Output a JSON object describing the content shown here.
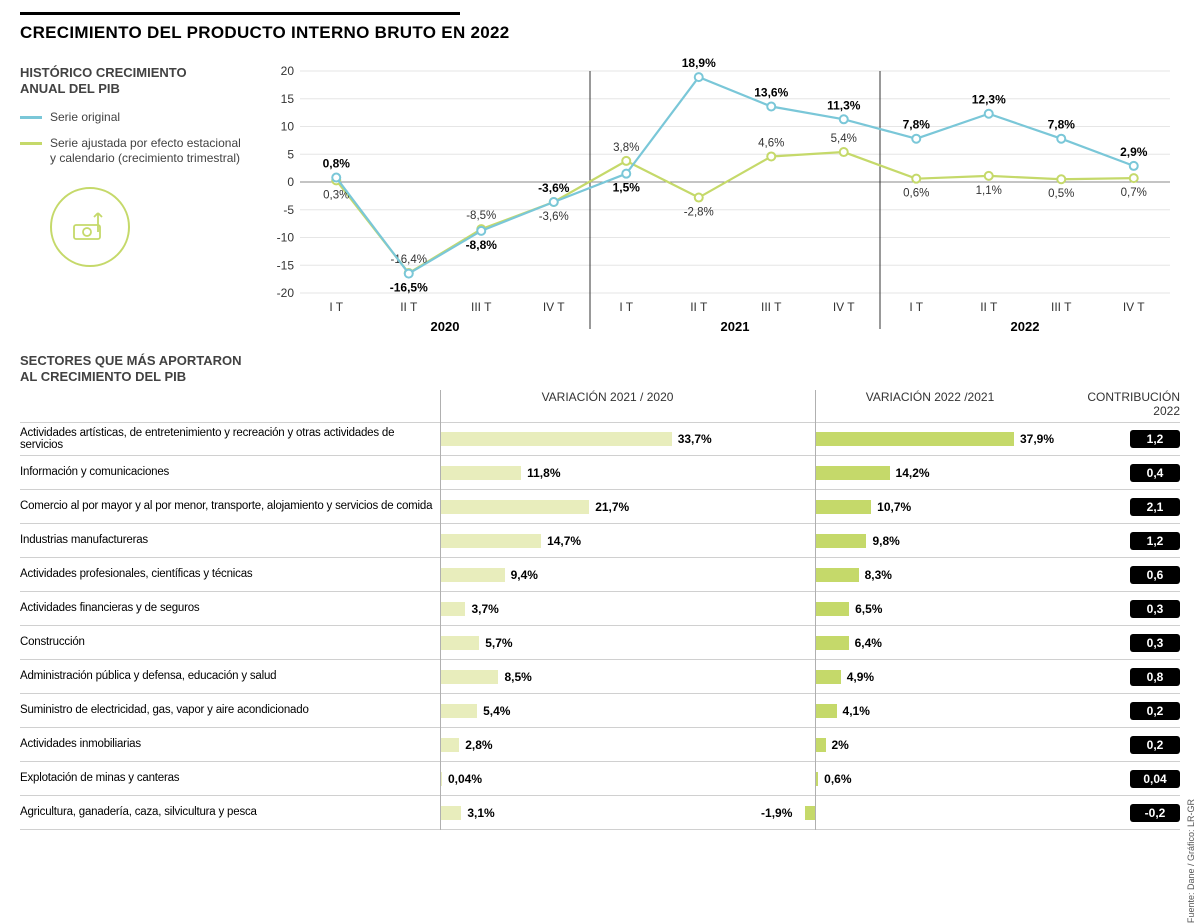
{
  "title": "CRECIMIENTO DEL PRODUCTO INTERNO BRUTO EN 2022",
  "legend": {
    "heading_l1": "HISTÓRICO CRECIMIENTO",
    "heading_l2": "ANUAL DEL PIB",
    "series_original": "Serie original",
    "series_adjusted": "Serie ajustada por efecto estacional y calendario (crecimiento trimestral)"
  },
  "chart": {
    "type": "line",
    "y_min": -20,
    "y_max": 20,
    "y_step": 5,
    "quarters": [
      "I T",
      "II T",
      "III T",
      "IV T",
      "I T",
      "II T",
      "III T",
      "IV T",
      "I T",
      "II T",
      "III T",
      "IV T"
    ],
    "year_groups": [
      {
        "label": "2020",
        "span": [
          0,
          3
        ]
      },
      {
        "label": "2021",
        "span": [
          4,
          7
        ]
      },
      {
        "label": "2022",
        "span": [
          8,
          11
        ]
      }
    ],
    "colors": {
      "original": "#7ac7d8",
      "adjusted": "#c5d96a",
      "grid": "#e0e0e0",
      "text": "#333333",
      "axis": "#999999"
    },
    "original": {
      "values": [
        0.8,
        -16.5,
        -8.8,
        -3.6,
        1.5,
        18.9,
        13.6,
        11.3,
        7.8,
        12.3,
        7.8,
        2.9
      ],
      "labels": [
        "0,8%",
        "-16,5%",
        "-8,8%",
        "-3,6%",
        "1,5%",
        "18,9%",
        "13,6%",
        "11,3%",
        "7,8%",
        "12,3%",
        "7,8%",
        "2,9%"
      ],
      "label_pos": [
        "above",
        "below",
        "below",
        "above",
        "below",
        "above",
        "above",
        "above",
        "above",
        "above",
        "above",
        "above"
      ]
    },
    "adjusted": {
      "values": [
        0.3,
        -16.4,
        -8.5,
        -3.6,
        3.8,
        -2.8,
        4.6,
        5.4,
        0.6,
        1.1,
        0.5,
        0.7
      ],
      "labels": [
        "0,3%",
        "-16,4%",
        "-8,5%",
        "-3,6%",
        "3,8%",
        "-2,8%",
        "4,6%",
        "5,4%",
        "0,6%",
        "1,1%",
        "0,5%",
        "0,7%"
      ],
      "label_pos": [
        "below",
        "above",
        "above",
        "below",
        "above",
        "below",
        "above",
        "above",
        "below",
        "below",
        "below",
        "below"
      ]
    }
  },
  "sectors_title_l1": "SECTORES QUE MÁS APORTARON",
  "sectors_title_l2": "AL CRECIMIENTO DEL PIB",
  "headers": {
    "var1": "VARIACIÓN 2021 / 2020",
    "var2": "VARIACIÓN 2022 /2021",
    "contrib": "CONTRIBUCIÓN 2022"
  },
  "bar_colors": {
    "var1": "#e8edbc",
    "var2": "#c5d96a"
  },
  "bar_scale": {
    "max_percent": 40
  },
  "sectors": [
    {
      "name": "Actividades artísticas, de entretenimiento y recreación y otras actividades de servicios",
      "v1": 33.7,
      "v1_label": "33,7%",
      "v2": 37.9,
      "v2_label": "37,9%",
      "contrib": "1,2"
    },
    {
      "name": "Información y comunicaciones",
      "v1": 11.8,
      "v1_label": "11,8%",
      "v2": 14.2,
      "v2_label": "14,2%",
      "contrib": "0,4"
    },
    {
      "name": "Comercio al por mayor y al por menor, transporte, alojamiento y servicios de comida",
      "v1": 21.7,
      "v1_label": "21,7%",
      "v2": 10.7,
      "v2_label": "10,7%",
      "contrib": "2,1"
    },
    {
      "name": "Industrias manufactureras",
      "v1": 14.7,
      "v1_label": "14,7%",
      "v2": 9.8,
      "v2_label": "9,8%",
      "contrib": "1,2"
    },
    {
      "name": "Actividades profesionales, científicas y técnicas",
      "v1": 9.4,
      "v1_label": "9,4%",
      "v2": 8.3,
      "v2_label": "8,3%",
      "contrib": "0,6"
    },
    {
      "name": "Actividades financieras y de seguros",
      "v1": 3.7,
      "v1_label": "3,7%",
      "v2": 6.5,
      "v2_label": "6,5%",
      "contrib": "0,3"
    },
    {
      "name": "Construcción",
      "v1": 5.7,
      "v1_label": "5,7%",
      "v2": 6.4,
      "v2_label": "6,4%",
      "contrib": "0,3"
    },
    {
      "name": "Administración pública y defensa, educación y salud",
      "v1": 8.5,
      "v1_label": "8,5%",
      "v2": 4.9,
      "v2_label": "4,9%",
      "contrib": "0,8"
    },
    {
      "name": "Suministro de electricidad, gas, vapor y aire acondicionado",
      "v1": 5.4,
      "v1_label": "5,4%",
      "v2": 4.1,
      "v2_label": "4,1%",
      "contrib": "0,2"
    },
    {
      "name": "Actividades inmobiliarias",
      "v1": 2.8,
      "v1_label": "2,8%",
      "v2": 2.0,
      "v2_label": "2%",
      "contrib": "0,2"
    },
    {
      "name": "Explotación de minas y canteras",
      "v1": 0.04,
      "v1_label": "0,04%",
      "v2": 0.6,
      "v2_label": "0,6%",
      "contrib": "0,04"
    },
    {
      "name": "Agricultura, ganadería, caza, silvicultura y pesca",
      "v1": 3.1,
      "v1_label": "3,1%",
      "v2": -1.9,
      "v2_label": "-1,9%",
      "contrib": "-0,2"
    }
  ],
  "source": "Fuente: Dane / Gráfico: LR-GR"
}
